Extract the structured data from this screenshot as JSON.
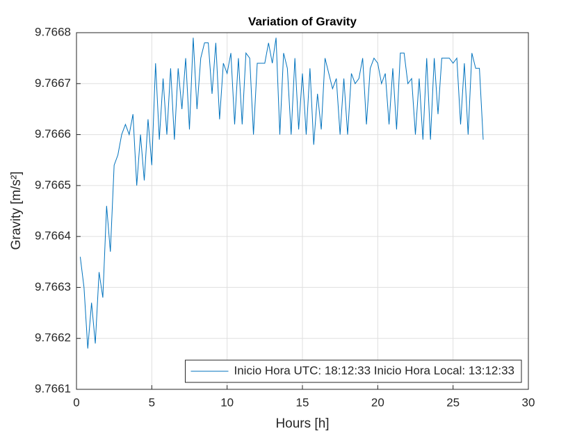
{
  "chart_data": {
    "type": "line",
    "title": "Variation of Gravity",
    "x_label": "Hours [h]",
    "y_label": "Gravity [m/s²]",
    "x": [
      0.25,
      0.5,
      0.75,
      1,
      1.25,
      1.5,
      1.75,
      2,
      2.25,
      2.5,
      2.75,
      3,
      3.25,
      3.5,
      3.75,
      4,
      4.25,
      4.5,
      4.75,
      5,
      5.25,
      5.5,
      5.75,
      6,
      6.25,
      6.5,
      6.75,
      7,
      7.25,
      7.5,
      7.75,
      8,
      8.25,
      8.5,
      8.75,
      9,
      9.25,
      9.5,
      9.75,
      10,
      10.25,
      10.5,
      10.75,
      11,
      11.25,
      11.5,
      11.75,
      12,
      12.25,
      12.5,
      12.75,
      13,
      13.25,
      13.5,
      13.75,
      14,
      14.25,
      14.5,
      14.75,
      15,
      15.25,
      15.5,
      15.75,
      16,
      16.25,
      16.5,
      16.75,
      17,
      17.25,
      17.5,
      17.75,
      18,
      18.25,
      18.5,
      18.75,
      19,
      19.25,
      19.5,
      19.75,
      20,
      20.25,
      20.5,
      20.75,
      21,
      21.25,
      21.5,
      21.75,
      22,
      22.25,
      22.5,
      22.75,
      23,
      23.25,
      23.5,
      23.75,
      24,
      24.25,
      24.5,
      24.75,
      25,
      25.25,
      25.5,
      25.75,
      26,
      26.25,
      26.5,
      26.75,
      27
    ],
    "series": [
      {
        "name": "Inicio Hora UTC: 18:12:33 Inicio Hora Local: 13:12:33",
        "color": "#0072bd",
        "values": [
          9.76636,
          9.7663,
          9.76618,
          9.76627,
          9.76619,
          9.76633,
          9.76628,
          9.76646,
          9.76637,
          9.76654,
          9.76656,
          9.7666,
          9.76662,
          9.7666,
          9.76664,
          9.7665,
          9.7666,
          9.76651,
          9.76663,
          9.76654,
          9.76674,
          9.76659,
          9.76671,
          9.7666,
          9.76673,
          9.76659,
          9.76673,
          9.76665,
          9.76675,
          9.76661,
          9.76679,
          9.76665,
          9.76675,
          9.76678,
          9.76678,
          9.76668,
          9.76678,
          9.76663,
          9.76674,
          9.76672,
          9.76676,
          9.76662,
          9.76675,
          9.76662,
          9.76676,
          9.76675,
          9.7666,
          9.76674,
          9.76674,
          9.76674,
          9.76678,
          9.76674,
          9.76679,
          9.7666,
          9.76676,
          9.76673,
          9.7666,
          9.76675,
          9.76661,
          9.76672,
          9.7666,
          9.76673,
          9.76658,
          9.76668,
          9.76661,
          9.76675,
          9.76672,
          9.76669,
          9.76671,
          9.7666,
          9.76671,
          9.7666,
          9.76672,
          9.7667,
          9.76671,
          9.76675,
          9.76662,
          9.76673,
          9.76675,
          9.76674,
          9.7667,
          9.76672,
          9.76662,
          9.76673,
          9.76661,
          9.76676,
          9.76676,
          9.7667,
          9.76671,
          9.7666,
          9.76671,
          9.76659,
          9.76675,
          9.76659,
          9.76675,
          9.76664,
          9.76675,
          9.76675,
          9.76675,
          9.76674,
          9.76675,
          9.76662,
          9.76674,
          9.7666,
          9.76676,
          9.76673,
          9.76673,
          9.76659
        ]
      }
    ],
    "xlim": [
      0,
      30
    ],
    "xticks": [
      0,
      5,
      10,
      15,
      20,
      25,
      30
    ],
    "ylim": [
      9.7661,
      9.7668
    ],
    "yticks": [
      9.7661,
      9.7662,
      9.7663,
      9.7664,
      9.7665,
      9.7666,
      9.7667,
      9.7668
    ],
    "grid": true,
    "legend_location": "southeast"
  }
}
